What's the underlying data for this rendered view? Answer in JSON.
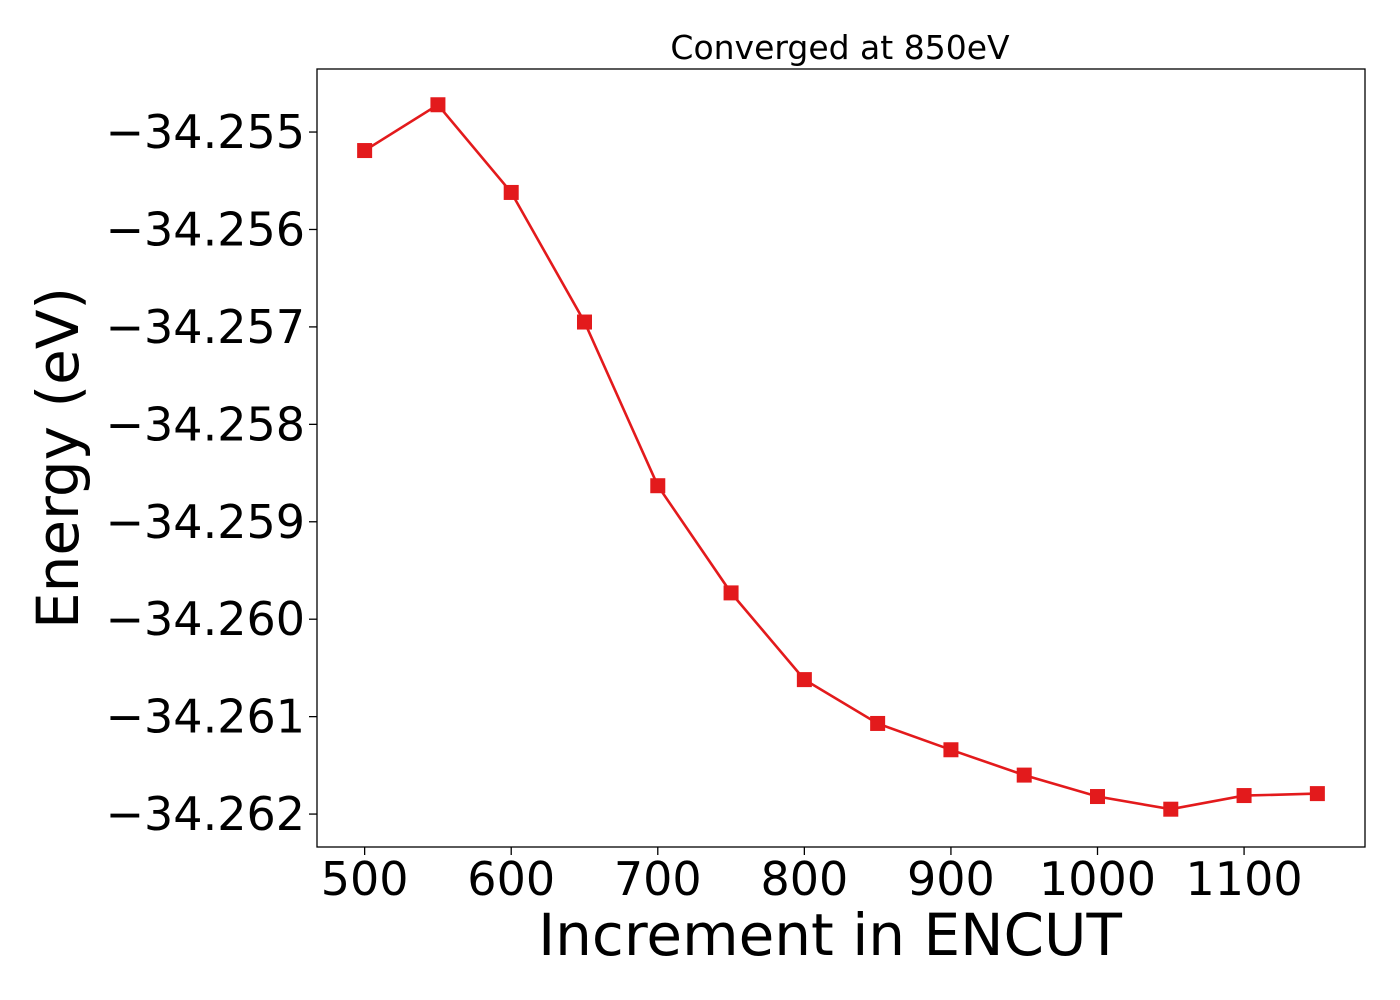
{
  "chart_data": {
    "type": "line",
    "title": "Converged at 850eV",
    "xlabel": "Increment in ENCUT",
    "ylabel": "Energy (eV)",
    "x": [
      500,
      550,
      600,
      650,
      700,
      750,
      800,
      850,
      900,
      950,
      1000,
      1050,
      1100,
      1150
    ],
    "series": [
      {
        "values": [
          -34.25519,
          -34.25472,
          -34.25562,
          -34.25695,
          -34.25863,
          -34.25973,
          -34.26062,
          -34.26107,
          -34.26134,
          -34.2616,
          -34.26182,
          -34.26195,
          -34.26181,
          -34.26179
        ],
        "color": "#e31a1c",
        "marker": "square"
      }
    ],
    "xticks": [
      500,
      600,
      700,
      800,
      900,
      1000,
      1100
    ],
    "yticks": [
      -34.255,
      -34.256,
      -34.257,
      -34.258,
      -34.259,
      -34.26,
      -34.261,
      -34.262
    ],
    "xtick_labels": [
      "500",
      "600",
      "700",
      "800",
      "900",
      "1000",
      "1100"
    ],
    "ytick_labels": [
      "−34.255",
      "−34.256",
      "−34.257",
      "−34.258",
      "−34.259",
      "−34.260",
      "−34.261",
      "−34.262"
    ],
    "xlim": [
      467.5,
      1182.5
    ],
    "ylim": [
      -34.262338,
      -34.254353
    ],
    "grid": false,
    "legend": "none"
  }
}
